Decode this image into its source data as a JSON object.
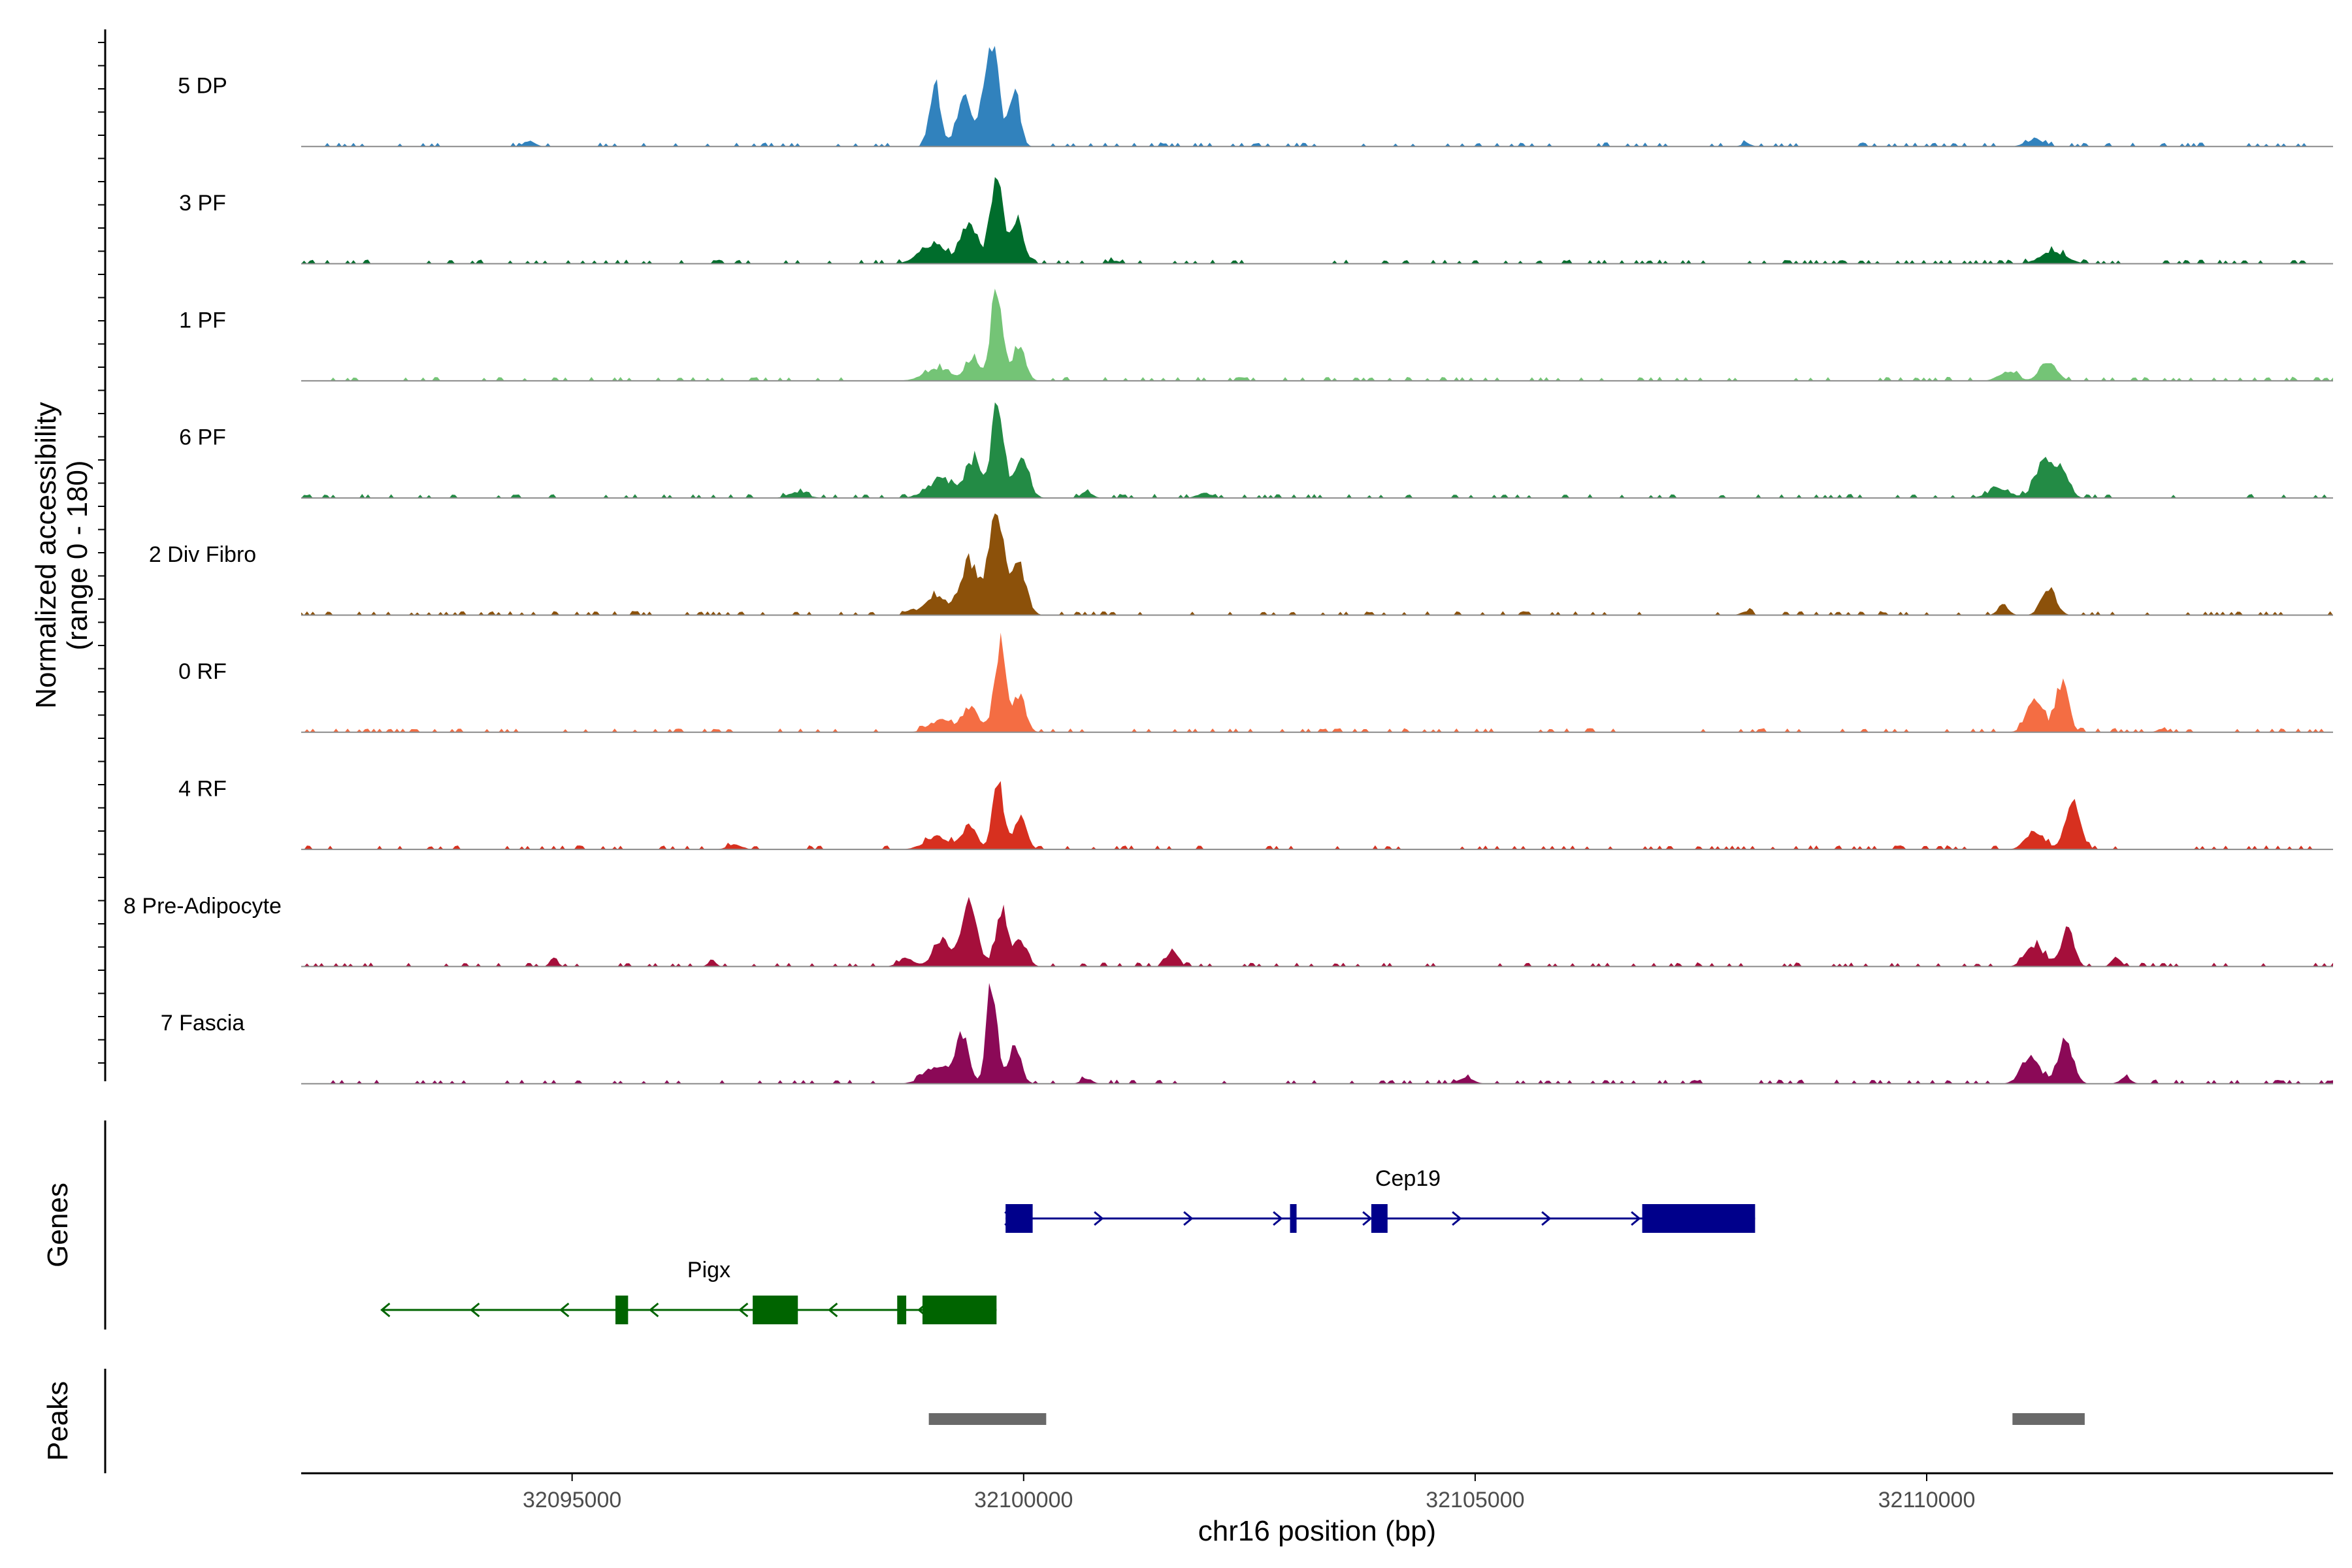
{
  "chart_data": {
    "type": "area",
    "title": "",
    "chromosome": "chr16",
    "xlabel": "chr16 position (bp)",
    "ylabel": "Normalized accessibility",
    "ylabel_sub": "(range 0 - 180)",
    "xlim": [
      32092000,
      32114500
    ],
    "ylim": [
      0,
      180
    ],
    "x_ticks": [
      32095000,
      32100000,
      32105000,
      32110000
    ],
    "x_tick_labels": [
      "32095000",
      "32100000",
      "32105000",
      "32110000"
    ],
    "series": [
      {
        "name": "5 DP",
        "color": "#3182BD",
        "peaks": [
          [
            32099020,
            60,
            95
          ],
          [
            32099340,
            80,
            85
          ],
          [
            32099640,
            80,
            180
          ],
          [
            32099900,
            60,
            95
          ],
          [
            32094530,
            60,
            10
          ],
          [
            32108000,
            50,
            6
          ],
          [
            32111200,
            100,
            12
          ]
        ]
      },
      {
        "name": "3 PF",
        "color": "#006D2C",
        "peaks": [
          [
            32099000,
            150,
            30
          ],
          [
            32099400,
            90,
            60
          ],
          [
            32099700,
            70,
            150
          ],
          [
            32099930,
            70,
            70
          ],
          [
            32101000,
            60,
            5
          ],
          [
            32111400,
            140,
            20
          ]
        ]
      },
      {
        "name": "1 PF",
        "color": "#74C476",
        "peaks": [
          [
            32099050,
            150,
            20
          ],
          [
            32099440,
            70,
            40
          ],
          [
            32099700,
            60,
            160
          ],
          [
            32099950,
            70,
            55
          ],
          [
            32110900,
            100,
            15
          ],
          [
            32111350,
            90,
            30
          ]
        ]
      },
      {
        "name": "6 PF",
        "color": "#238B45",
        "peaks": [
          [
            32099100,
            160,
            30
          ],
          [
            32099450,
            80,
            60
          ],
          [
            32099710,
            70,
            150
          ],
          [
            32099980,
            80,
            60
          ],
          [
            32100700,
            60,
            10
          ],
          [
            32097500,
            100,
            10
          ],
          [
            32102000,
            80,
            8
          ],
          [
            32110800,
            120,
            15
          ],
          [
            32111300,
            100,
            60
          ],
          [
            32111500,
            80,
            40
          ]
        ]
      },
      {
        "name": "2 Div Fibro",
        "color": "#8C510A",
        "peaks": [
          [
            32099020,
            130,
            30
          ],
          [
            32099400,
            100,
            90
          ],
          [
            32099700,
            80,
            180
          ],
          [
            32099950,
            80,
            80
          ],
          [
            32110850,
            60,
            15
          ],
          [
            32111350,
            80,
            45
          ],
          [
            32108000,
            60,
            6
          ]
        ]
      },
      {
        "name": "0 RF",
        "color": "#F46D43",
        "peaks": [
          [
            32099080,
            120,
            20
          ],
          [
            32099420,
            90,
            40
          ],
          [
            32099740,
            60,
            145
          ],
          [
            32099950,
            70,
            60
          ],
          [
            32111200,
            90,
            55
          ],
          [
            32111500,
            70,
            80
          ],
          [
            32112600,
            50,
            6
          ]
        ]
      },
      {
        "name": "4 RF",
        "color": "#D7301F",
        "peaks": [
          [
            32099050,
            140,
            20
          ],
          [
            32099400,
            80,
            40
          ],
          [
            32099720,
            60,
            110
          ],
          [
            32099960,
            70,
            50
          ],
          [
            32096800,
            80,
            8
          ],
          [
            32111200,
            100,
            30
          ],
          [
            32111620,
            80,
            80
          ]
        ]
      },
      {
        "name": "8 Pre-Adipocyte",
        "color": "#A50F3B",
        "peaks": [
          [
            32098700,
            80,
            15
          ],
          [
            32099100,
            100,
            40
          ],
          [
            32099400,
            80,
            110
          ],
          [
            32099760,
            70,
            85
          ],
          [
            32099970,
            70,
            40
          ],
          [
            32094800,
            40,
            16
          ],
          [
            32096550,
            40,
            12
          ],
          [
            32101650,
            60,
            30
          ],
          [
            32111200,
            100,
            35
          ],
          [
            32111560,
            70,
            60
          ],
          [
            32112100,
            50,
            16
          ]
        ]
      },
      {
        "name": "7 Fascia",
        "color": "#8B0957",
        "peaks": [
          [
            32099050,
            140,
            30
          ],
          [
            32099320,
            70,
            80
          ],
          [
            32099650,
            60,
            160
          ],
          [
            32099900,
            70,
            60
          ],
          [
            32100700,
            60,
            8
          ],
          [
            32104900,
            80,
            10
          ],
          [
            32111150,
            100,
            45
          ],
          [
            32111540,
            80,
            70
          ],
          [
            32112200,
            60,
            10
          ]
        ]
      }
    ],
    "genes_track": {
      "label": "Genes",
      "genes": [
        {
          "name": "Cep19",
          "strand": "+",
          "color": "#00008B",
          "start": 32099800,
          "end": 32108100,
          "exons": [
            [
              32099800,
              32100100
            ],
            [
              32102950,
              32103020
            ],
            [
              32103850,
              32104030
            ],
            [
              32106850,
              32108100
            ]
          ]
        },
        {
          "name": "Pigx",
          "strand": "-",
          "color": "#006400",
          "start": 32092900,
          "end": 32099700,
          "exons": [
            [
              32095480,
              32095620
            ],
            [
              32097000,
              32097500
            ],
            [
              32098600,
              32098700
            ],
            [
              32098880,
              32099700
            ]
          ]
        }
      ]
    },
    "peaks_track": {
      "label": "Peaks",
      "color": "#696969",
      "regions": [
        [
          32098950,
          32100250
        ],
        [
          32110950,
          32111750
        ]
      ]
    }
  }
}
